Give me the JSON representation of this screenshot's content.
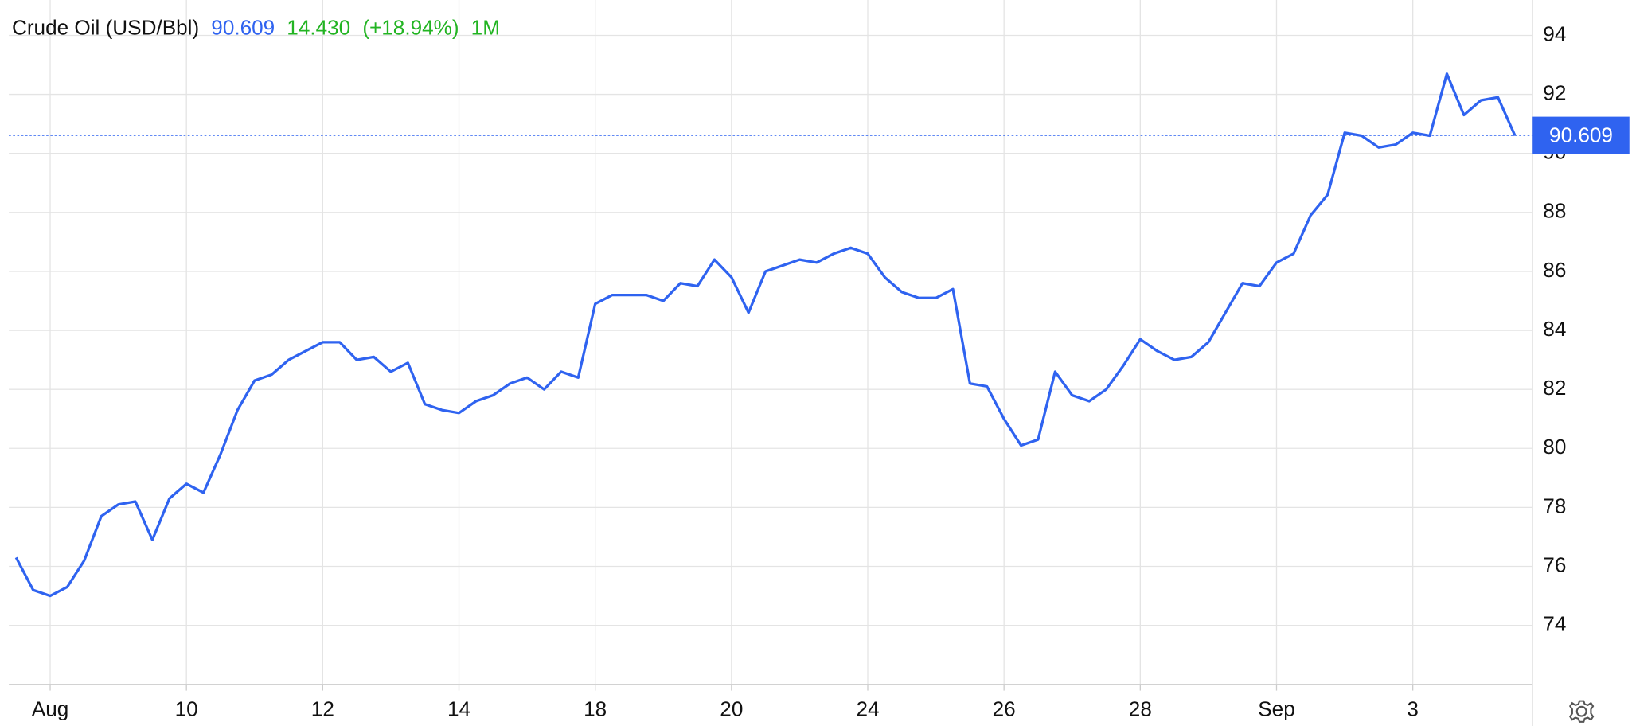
{
  "chart_data": {
    "type": "line",
    "title": "Crude Oil (USD/Bbl)",
    "last_value": 90.609,
    "change": "14.430",
    "change_percent": "(+18.94%)",
    "period": "1M",
    "categories": [
      null,
      null,
      "Aug",
      null,
      null,
      null,
      null,
      null,
      null,
      null,
      "10",
      null,
      null,
      null,
      null,
      null,
      null,
      null,
      "12",
      null,
      null,
      null,
      null,
      null,
      null,
      null,
      "14",
      null,
      null,
      null,
      null,
      null,
      null,
      null,
      "18",
      null,
      null,
      null,
      null,
      null,
      null,
      null,
      "20",
      null,
      null,
      null,
      null,
      null,
      null,
      null,
      "24",
      null,
      null,
      null,
      null,
      null,
      null,
      null,
      "26",
      null,
      null,
      null,
      null,
      null,
      null,
      null,
      "28",
      null,
      null,
      null,
      null,
      null,
      null,
      null,
      "Sep",
      null,
      null,
      null,
      null,
      null,
      null,
      null,
      "3",
      null,
      null,
      null,
      null,
      null,
      null
    ],
    "series": [
      {
        "color": "#2f63f0",
        "values": [
          76.3,
          75.2,
          75.0,
          75.3,
          76.2,
          77.7,
          78.1,
          78.2,
          76.9,
          78.3,
          78.8,
          78.5,
          79.8,
          81.3,
          82.3,
          82.5,
          83.0,
          83.3,
          83.6,
          83.6,
          83.0,
          83.1,
          82.6,
          82.9,
          81.5,
          81.3,
          81.2,
          81.6,
          81.8,
          82.2,
          82.4,
          82.0,
          82.6,
          82.4,
          84.9,
          85.2,
          85.2,
          85.2,
          85.0,
          85.6,
          85.5,
          86.4,
          85.8,
          84.6,
          86.0,
          86.2,
          86.4,
          86.3,
          86.6,
          86.8,
          86.6,
          85.8,
          85.3,
          85.1,
          85.1,
          85.4,
          82.2,
          82.1,
          81.0,
          80.1,
          80.3,
          82.6,
          81.8,
          81.6,
          82.0,
          82.8,
          83.7,
          83.3,
          83.0,
          83.1,
          83.6,
          84.6,
          85.6,
          85.5,
          86.3,
          86.6,
          87.9,
          88.6,
          90.7,
          90.6,
          90.2,
          90.3,
          90.7,
          90.6,
          92.7,
          91.3,
          91.8,
          91.9,
          90.6
        ]
      }
    ],
    "ylim": [
      72,
      95.2
    ],
    "yticks": [
      74,
      76,
      78,
      80,
      82,
      84,
      86,
      88,
      90,
      92,
      94
    ],
    "grid": true
  }
}
